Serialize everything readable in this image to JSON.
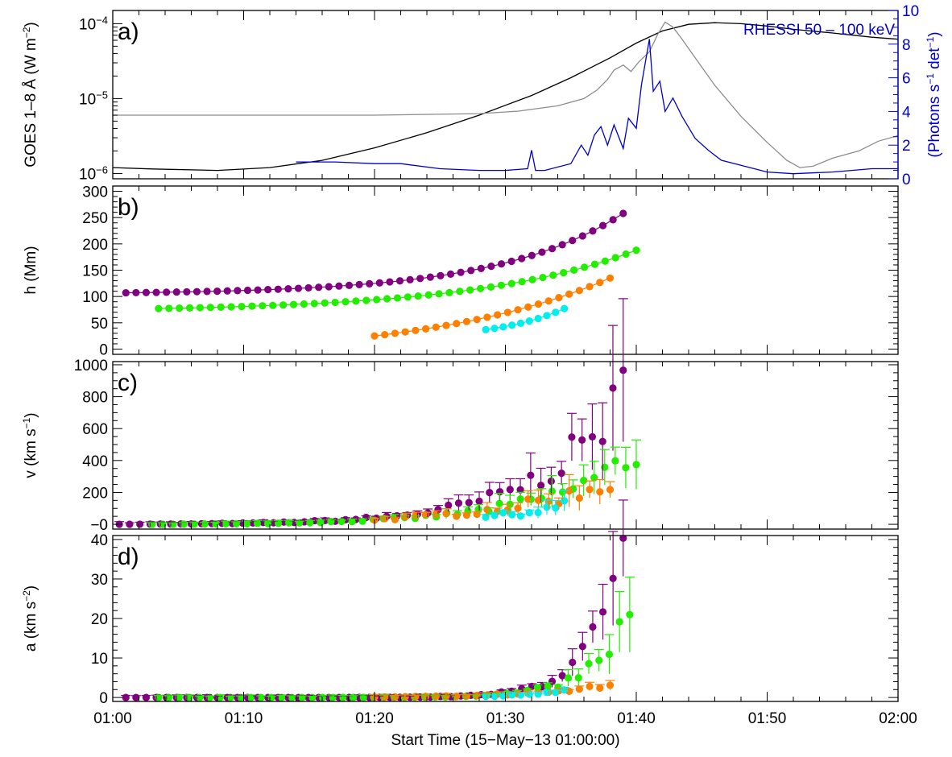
{
  "chart_data": [
    {
      "panel": "a",
      "type": "line",
      "panel_label": "a)",
      "ylabel": "GOES 1–8 Å (W m",
      "ylabel_sup": "−2",
      "ylabel_end": ")",
      "yscale": "log",
      "ylim": [
        8.5e-07,
        0.00015
      ],
      "ytick_values": [
        1e-06,
        1e-05,
        0.0001
      ],
      "ytick_labels": [
        "10",
        "10",
        "10"
      ],
      "ytick_sups": [
        "−6",
        "−5",
        "−4"
      ],
      "y2label": "(Photons s",
      "y2label_sup1": "−1",
      "y2label_mid": " det",
      "y2label_sup2": "−1",
      "y2label_end": ")",
      "y2lim": [
        0,
        10
      ],
      "y2ticks": [
        0,
        2,
        4,
        6,
        8,
        10
      ],
      "legend": "RHESSI 50 – 100 keV",
      "colors": {
        "goes_long": "#000000",
        "goes_short": "#8c8c8c",
        "rhessi": "#0000cc"
      },
      "series": [
        {
          "key": "goes_long",
          "x": [
            0,
            3,
            8,
            12,
            16,
            20,
            24,
            28,
            32,
            35,
            38,
            40,
            42,
            44,
            46,
            48,
            50,
            52,
            55,
            58,
            60
          ],
          "y": [
            1.2e-06,
            1.15e-06,
            1.1e-06,
            1.2e-06,
            1.5e-06,
            2.2e-06,
            3.5e-06,
            6e-06,
            1.1e-05,
            1.9e-05,
            3.5e-05,
            5.5e-05,
            8e-05,
            9.8e-05,
            0.000103,
            0.0001,
            9.3e-05,
            8.4e-05,
            7.5e-05,
            6.6e-05,
            6.2e-05
          ]
        },
        {
          "key": "goes_short",
          "x": [
            0,
            10,
            20,
            28,
            31,
            34,
            36,
            37,
            37.8,
            38.3,
            39,
            39.6,
            40.2,
            41,
            41.6,
            42.2,
            42.8,
            43.5,
            44.5,
            46,
            48,
            50,
            51.5,
            52.5,
            53.5,
            55,
            57,
            58.5,
            60
          ],
          "y": [
            6e-06,
            6e-06,
            6e-06,
            6.3e-06,
            6.8e-06,
            8e-06,
            1e-05,
            1.3e-05,
            1.8e-05,
            2.4e-05,
            2.8e-05,
            2.3e-05,
            3.1e-05,
            4.2e-05,
            7e-05,
            0.000105,
            9e-05,
            6.2e-05,
            3.5e-05,
            1.5e-05,
            5.8e-06,
            2.6e-06,
            1.5e-06,
            1.2e-06,
            1.25e-06,
            1.6e-06,
            2e-06,
            2.7e-06,
            3.2e-06
          ]
        },
        {
          "key": "rhessi",
          "x": [
            14,
            17,
            20,
            22,
            25,
            28,
            30,
            31.7,
            32,
            32.3,
            33,
            35,
            35.8,
            36.3,
            36.8,
            37.3,
            37.8,
            38.3,
            39,
            39.4,
            40,
            40.4,
            41,
            41.3,
            41.8,
            42.2,
            42.8,
            43.5,
            44.5,
            45.5,
            46.5,
            48,
            50,
            52,
            55,
            58,
            60
          ],
          "y": [
            1,
            1,
            0.9,
            0.9,
            0.6,
            0.5,
            0.5,
            0.6,
            1.7,
            0.5,
            0.5,
            0.9,
            2,
            1.4,
            2.6,
            3.1,
            2,
            3.2,
            1.8,
            3.6,
            3,
            5.6,
            8.3,
            5.2,
            5.8,
            4,
            4.8,
            3.7,
            2.4,
            1.7,
            1.1,
            0.8,
            0.4,
            0.3,
            0.4,
            0.6,
            0.6
          ]
        }
      ]
    },
    {
      "panel": "b",
      "type": "scatter",
      "panel_label": "b)",
      "ylabel": "h (Mm)",
      "ylim": [
        -10,
        310
      ],
      "yticks": [
        0,
        50,
        100,
        150,
        200,
        250,
        300
      ],
      "series": [
        {
          "color": "#800080",
          "t0": 1,
          "t1": 39,
          "n": 50,
          "h0": 107,
          "h1": 258,
          "curve": 4
        },
        {
          "color": "#22ee00",
          "t0": 3.5,
          "t1": 40,
          "n": 47,
          "h0": 77,
          "h1": 188,
          "curve": 3
        },
        {
          "color": "#ff7f00",
          "t0": 20,
          "t1": 38,
          "n": 24,
          "h0": 25,
          "h1": 135,
          "curve": 1.3
        },
        {
          "color": "#00eeee",
          "t0": 28.5,
          "t1": 34.5,
          "n": 10,
          "h0": 37,
          "h1": 77,
          "curve": 1.2
        }
      ]
    },
    {
      "panel": "c",
      "type": "scatter",
      "panel_label": "c)",
      "ylabel": "v (km s",
      "ylabel_sup": "−1",
      "ylabel_end": ")",
      "ylim": [
        -30,
        1020
      ],
      "yticks": [
        0,
        200,
        400,
        600,
        800,
        1000
      ],
      "ytick_labels": [
        "−0",
        "200",
        "400",
        "600",
        "800",
        "1000"
      ],
      "series": [
        {
          "color": "#800080",
          "t0": 0.5,
          "t1": 39,
          "n": 50,
          "v_start": 0,
          "v_end": 810,
          "curve": 6
        },
        {
          "color": "#22ee00",
          "t0": 3,
          "t1": 40,
          "n": 47,
          "v_start": 0,
          "v_end": 440,
          "curve": 5
        },
        {
          "color": "#ff7f00",
          "t0": 20,
          "t1": 38,
          "n": 24,
          "v_start": 30,
          "v_end": 260,
          "curve": 2
        },
        {
          "color": "#00eeee",
          "t0": 28.5,
          "t1": 34.5,
          "n": 10,
          "v_start": 50,
          "v_end": 120,
          "curve": 1.5
        }
      ]
    },
    {
      "panel": "d",
      "type": "scatter",
      "panel_label": "d)",
      "ylabel": "a (km s",
      "ylabel_sup": "−2",
      "ylabel_end": ")",
      "ylim": [
        -1,
        41
      ],
      "yticks": [
        0,
        10,
        20,
        30,
        40
      ],
      "series": [
        {
          "color": "#800080",
          "t0": 1,
          "t1": 39,
          "n": 50,
          "a_start": 0,
          "a_end": 35,
          "curve": 14
        },
        {
          "color": "#22ee00",
          "t0": 3.5,
          "t1": 39.5,
          "n": 47,
          "a_start": 0,
          "a_end": 21,
          "curve": 12
        },
        {
          "color": "#ff7f00",
          "t0": 20,
          "t1": 38,
          "n": 24,
          "a_start": 0.1,
          "a_end": 3,
          "curve": 3
        },
        {
          "color": "#00eeee",
          "t0": 28.5,
          "t1": 34.5,
          "n": 10,
          "a_start": 0.3,
          "a_end": 2,
          "curve": 2
        }
      ]
    }
  ],
  "xaxis": {
    "xlim": [
      0,
      60
    ],
    "ticks": [
      0,
      10,
      20,
      30,
      40,
      50,
      60
    ],
    "tick_labels": [
      "01:00",
      "01:10",
      "01:20",
      "01:30",
      "01:40",
      "01:50",
      "02:00"
    ],
    "xlabel": "Start Time (15−May−13 01:00:00)"
  }
}
